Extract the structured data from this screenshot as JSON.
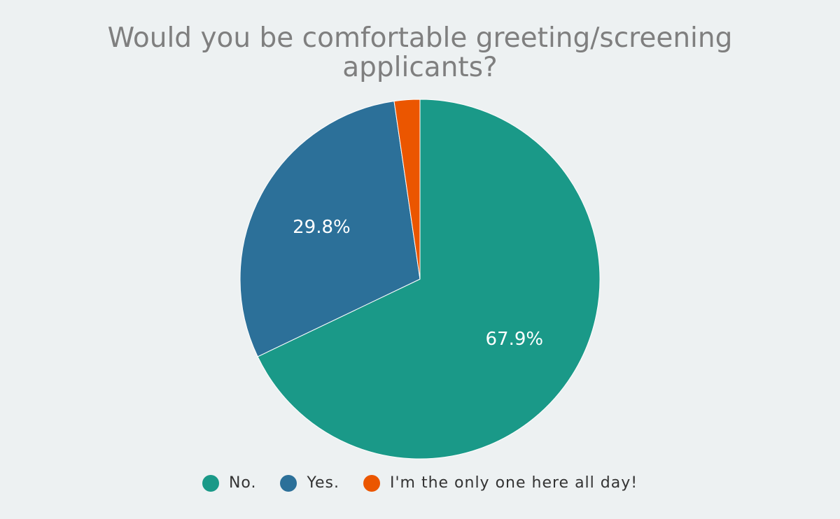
{
  "chart_data": {
    "type": "pie",
    "title": "Would you be comfortable greeting/screening applicants?",
    "title_lines": [
      "Would you be comfortable greeting/screening",
      "applicants?"
    ],
    "slices": [
      {
        "label": "No.",
        "value": 67.9,
        "display": "67.9%",
        "color": "#1a9988"
      },
      {
        "label": "Yes.",
        "value": 29.8,
        "display": "29.8%",
        "color": "#2c7099"
      },
      {
        "label": "I'm the only one here all day!",
        "value": 2.3,
        "display": "",
        "color": "#eb5600"
      }
    ],
    "legend_position": "bottom"
  }
}
